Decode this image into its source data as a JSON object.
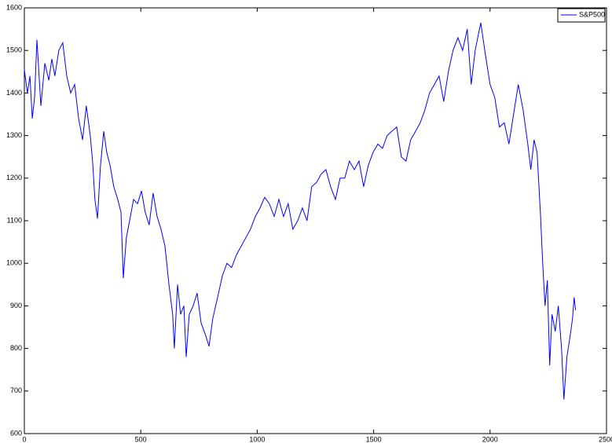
{
  "chart_data": {
    "type": "line",
    "x": [
      0,
      13,
      24,
      34,
      44,
      54,
      71,
      88,
      105,
      118,
      131,
      148,
      165,
      182,
      199,
      216,
      233,
      250,
      266,
      283,
      293,
      303,
      314,
      327,
      341,
      354,
      368,
      384,
      401,
      415,
      425,
      438,
      452,
      469,
      486,
      503,
      519,
      536,
      553,
      570,
      587,
      604,
      621,
      637,
      644,
      658,
      671,
      685,
      695,
      708,
      725,
      742,
      759,
      779,
      793,
      809,
      830,
      850,
      870,
      890,
      911,
      931,
      951,
      971,
      992,
      1012,
      1032,
      1052,
      1073,
      1093,
      1113,
      1133,
      1153,
      1174,
      1194,
      1214,
      1234,
      1255,
      1275,
      1295,
      1315,
      1336,
      1356,
      1376,
      1396,
      1417,
      1437,
      1457,
      1477,
      1497,
      1518,
      1538,
      1558,
      1578,
      1599,
      1619,
      1639,
      1659,
      1680,
      1700,
      1720,
      1740,
      1761,
      1781,
      1801,
      1821,
      1841,
      1862,
      1882,
      1902,
      1919,
      1936,
      1960,
      1980,
      2000,
      2020,
      2040,
      2061,
      2081,
      2101,
      2121,
      2142,
      2162,
      2175,
      2189,
      2202,
      2216,
      2226,
      2236,
      2246,
      2256,
      2266,
      2280,
      2293,
      2307,
      2317,
      2330,
      2344,
      2354,
      2361,
      2367
    ],
    "series": [
      {
        "name": "S&P500",
        "color": "#0000ff",
        "values": [
          1455,
          1400,
          1440,
          1340,
          1390,
          1525,
          1370,
          1470,
          1430,
          1480,
          1440,
          1500,
          1518,
          1440,
          1400,
          1420,
          1340,
          1290,
          1370,
          1300,
          1240,
          1150,
          1105,
          1230,
          1310,
          1260,
          1230,
          1180,
          1150,
          1120,
          965,
          1060,
          1100,
          1150,
          1140,
          1170,
          1120,
          1090,
          1165,
          1110,
          1080,
          1040,
          950,
          880,
          800,
          950,
          880,
          900,
          780,
          880,
          900,
          930,
          860,
          830,
          805,
          870,
          920,
          970,
          1000,
          990,
          1020,
          1040,
          1060,
          1080,
          1110,
          1130,
          1155,
          1140,
          1110,
          1150,
          1110,
          1140,
          1080,
          1100,
          1130,
          1100,
          1180,
          1190,
          1210,
          1220,
          1180,
          1150,
          1200,
          1200,
          1240,
          1220,
          1240,
          1180,
          1230,
          1260,
          1280,
          1270,
          1300,
          1310,
          1320,
          1250,
          1240,
          1290,
          1310,
          1330,
          1360,
          1400,
          1420,
          1440,
          1380,
          1450,
          1500,
          1530,
          1500,
          1550,
          1420,
          1500,
          1565,
          1490,
          1420,
          1390,
          1320,
          1330,
          1280,
          1350,
          1420,
          1360,
          1280,
          1220,
          1290,
          1260,
          1120,
          1000,
          900,
          960,
          760,
          880,
          840,
          900,
          800,
          680,
          780,
          830,
          870,
          920,
          890
        ]
      }
    ],
    "xlim": [
      0,
      2500
    ],
    "xticks": [
      0,
      500,
      1000,
      1500,
      2000,
      2500
    ],
    "ylim": [
      600,
      1600
    ],
    "yticks": [
      600,
      700,
      800,
      900,
      1000,
      1100,
      1200,
      1300,
      1400,
      1500,
      1600
    ],
    "legend": "upper right"
  }
}
